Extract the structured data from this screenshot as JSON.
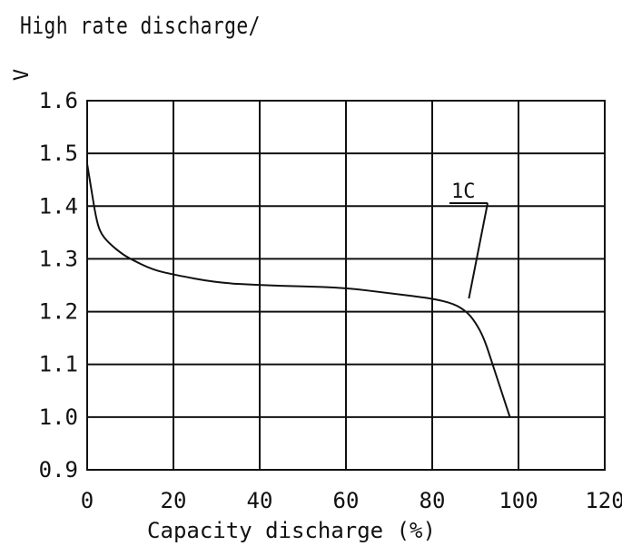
{
  "chart_data": {
    "type": "line",
    "title": "High rate discharge/",
    "ylabel_unit": "V",
    "xlabel": "Capacity discharge (%)",
    "xlim": [
      0,
      120
    ],
    "ylim": [
      0.9,
      1.6
    ],
    "x_ticks": [
      0,
      20,
      40,
      60,
      80,
      100,
      120
    ],
    "y_ticks": [
      0.9,
      1.0,
      1.1,
      1.2,
      1.3,
      1.4,
      1.5,
      1.6
    ],
    "x_tick_labels": [
      "0",
      "20",
      "40",
      "60",
      "80",
      "100",
      "120"
    ],
    "y_tick_labels": [
      "0.9",
      "1.0",
      "1.1",
      "1.2",
      "1.3",
      "1.4",
      "1.5",
      "1.6"
    ],
    "grid": true,
    "annotation": "1C",
    "series": [
      {
        "x": [
          0,
          1,
          2,
          3,
          5,
          8,
          10,
          15,
          20,
          30,
          40,
          50,
          60,
          70,
          80,
          85,
          88,
          90,
          92,
          94,
          96,
          98
        ],
        "y": [
          1.48,
          1.43,
          1.38,
          1.35,
          1.33,
          1.31,
          1.3,
          1.28,
          1.27,
          1.255,
          1.25,
          1.248,
          1.245,
          1.235,
          1.225,
          1.215,
          1.2,
          1.18,
          1.15,
          1.1,
          1.05,
          1.0
        ]
      }
    ],
    "style": {
      "line_color": "#111111",
      "grid_color": "#111111"
    }
  }
}
